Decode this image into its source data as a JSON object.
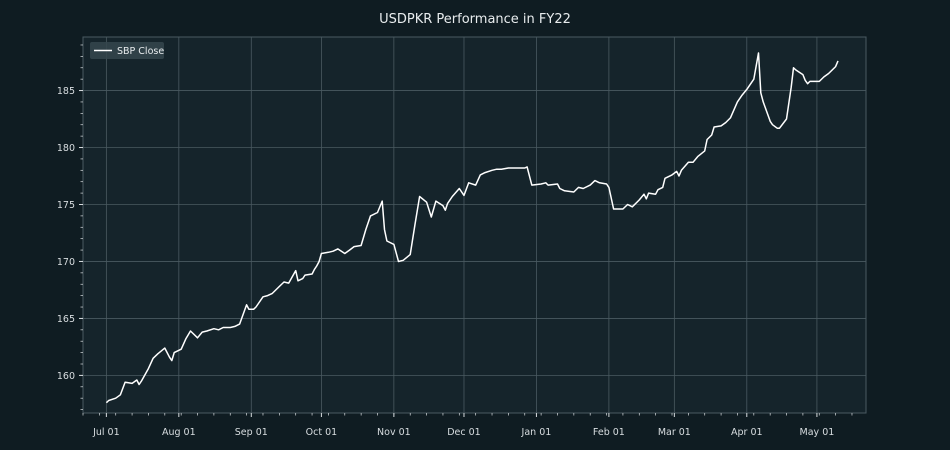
{
  "colors": {
    "figure_background": "#0f1c22",
    "axes_background": "#15242b",
    "grid": "#4a5a61",
    "line": "#ffffff",
    "text": "#d8dde0"
  },
  "chart_data": {
    "type": "line",
    "title": "USDPKR Performance in FY22",
    "xlabel": "",
    "ylabel": "",
    "grid": true,
    "legend_position": "top-left",
    "xlim": [
      "2021-06-21",
      "2022-05-22"
    ],
    "ylim": [
      156.7,
      189.7
    ],
    "x_ticks": [
      "2021-07-01",
      "2021-08-01",
      "2021-09-01",
      "2021-10-01",
      "2021-11-01",
      "2021-12-01",
      "2022-01-01",
      "2022-02-01",
      "2022-03-01",
      "2022-04-01",
      "2022-05-01"
    ],
    "x_tick_labels": [
      "Jul 01",
      "Aug 01",
      "Sep 01",
      "Oct 01",
      "Nov 01",
      "Dec 01",
      "Jan 01",
      "Feb 01",
      "Mar 01",
      "Apr 01",
      "May 01"
    ],
    "y_ticks": [
      160,
      165,
      170,
      175,
      180,
      185
    ],
    "y_tick_labels": [
      "160",
      "165",
      "170",
      "175",
      "180",
      "185"
    ],
    "series": [
      {
        "name": "SBP Close",
        "points": [
          [
            "2021-07-01",
            157.6
          ],
          [
            "2021-07-02",
            157.8
          ],
          [
            "2021-07-05",
            158.0
          ],
          [
            "2021-07-07",
            158.3
          ],
          [
            "2021-07-09",
            159.4
          ],
          [
            "2021-07-12",
            159.3
          ],
          [
            "2021-07-14",
            159.6
          ],
          [
            "2021-07-15",
            159.2
          ],
          [
            "2021-07-16",
            159.5
          ],
          [
            "2021-07-19",
            160.6
          ],
          [
            "2021-07-21",
            161.5
          ],
          [
            "2021-07-23",
            161.9
          ],
          [
            "2021-07-26",
            162.4
          ],
          [
            "2021-07-28",
            161.6
          ],
          [
            "2021-07-29",
            161.3
          ],
          [
            "2021-07-30",
            162.0
          ],
          [
            "2021-08-02",
            162.3
          ],
          [
            "2021-08-04",
            163.2
          ],
          [
            "2021-08-06",
            163.9
          ],
          [
            "2021-08-09",
            163.3
          ],
          [
            "2021-08-11",
            163.8
          ],
          [
            "2021-08-13",
            163.9
          ],
          [
            "2021-08-16",
            164.1
          ],
          [
            "2021-08-18",
            164.0
          ],
          [
            "2021-08-20",
            164.2
          ],
          [
            "2021-08-23",
            164.2
          ],
          [
            "2021-08-25",
            164.3
          ],
          [
            "2021-08-27",
            164.5
          ],
          [
            "2021-08-30",
            166.2
          ],
          [
            "2021-08-31",
            165.8
          ],
          [
            "2021-09-02",
            165.8
          ],
          [
            "2021-09-03",
            166.0
          ],
          [
            "2021-09-06",
            166.9
          ],
          [
            "2021-09-08",
            167.0
          ],
          [
            "2021-09-10",
            167.2
          ],
          [
            "2021-09-13",
            167.8
          ],
          [
            "2021-09-15",
            168.2
          ],
          [
            "2021-09-17",
            168.1
          ],
          [
            "2021-09-20",
            169.2
          ],
          [
            "2021-09-21",
            168.3
          ],
          [
            "2021-09-23",
            168.5
          ],
          [
            "2021-09-24",
            168.8
          ],
          [
            "2021-09-27",
            168.9
          ],
          [
            "2021-09-28",
            169.3
          ],
          [
            "2021-09-29",
            169.6
          ],
          [
            "2021-09-30",
            170.0
          ],
          [
            "2021-10-01",
            170.7
          ],
          [
            "2021-10-04",
            170.8
          ],
          [
            "2021-10-06",
            170.9
          ],
          [
            "2021-10-08",
            171.1
          ],
          [
            "2021-10-11",
            170.7
          ],
          [
            "2021-10-13",
            171.0
          ],
          [
            "2021-10-15",
            171.3
          ],
          [
            "2021-10-18",
            171.4
          ],
          [
            "2021-10-20",
            172.8
          ],
          [
            "2021-10-22",
            174.0
          ],
          [
            "2021-10-25",
            174.3
          ],
          [
            "2021-10-27",
            175.3
          ],
          [
            "2021-10-28",
            172.8
          ],
          [
            "2021-10-29",
            171.8
          ],
          [
            "2021-11-01",
            171.5
          ],
          [
            "2021-11-03",
            170.0
          ],
          [
            "2021-11-05",
            170.1
          ],
          [
            "2021-11-08",
            170.6
          ],
          [
            "2021-11-10",
            173.2
          ],
          [
            "2021-11-12",
            175.7
          ],
          [
            "2021-11-15",
            175.2
          ],
          [
            "2021-11-17",
            173.9
          ],
          [
            "2021-11-19",
            175.3
          ],
          [
            "2021-11-22",
            174.9
          ],
          [
            "2021-11-23",
            174.5
          ],
          [
            "2021-11-24",
            175.1
          ],
          [
            "2021-11-26",
            175.7
          ],
          [
            "2021-11-29",
            176.4
          ],
          [
            "2021-12-01",
            175.8
          ],
          [
            "2021-12-03",
            176.9
          ],
          [
            "2021-12-06",
            176.7
          ],
          [
            "2021-12-08",
            177.6
          ],
          [
            "2021-12-10",
            177.8
          ],
          [
            "2021-12-13",
            178.0
          ],
          [
            "2021-12-15",
            178.1
          ],
          [
            "2021-12-17",
            178.1
          ],
          [
            "2021-12-20",
            178.2
          ],
          [
            "2021-12-22",
            178.2
          ],
          [
            "2021-12-24",
            178.2
          ],
          [
            "2021-12-27",
            178.2
          ],
          [
            "2021-12-28",
            178.3
          ],
          [
            "2021-12-30",
            176.7
          ],
          [
            "2022-01-03",
            176.8
          ],
          [
            "2022-01-05",
            176.9
          ],
          [
            "2022-01-06",
            176.7
          ],
          [
            "2022-01-10",
            176.8
          ],
          [
            "2022-01-11",
            176.4
          ],
          [
            "2022-01-13",
            176.2
          ],
          [
            "2022-01-17",
            176.1
          ],
          [
            "2022-01-19",
            176.5
          ],
          [
            "2022-01-21",
            176.4
          ],
          [
            "2022-01-24",
            176.7
          ],
          [
            "2022-01-26",
            177.1
          ],
          [
            "2022-01-28",
            176.9
          ],
          [
            "2022-01-31",
            176.8
          ],
          [
            "2022-02-01",
            176.5
          ],
          [
            "2022-02-03",
            174.6
          ],
          [
            "2022-02-05",
            174.6
          ],
          [
            "2022-02-07",
            174.6
          ],
          [
            "2022-02-09",
            175.0
          ],
          [
            "2022-02-11",
            174.8
          ],
          [
            "2022-02-14",
            175.4
          ],
          [
            "2022-02-16",
            175.9
          ],
          [
            "2022-02-17",
            175.5
          ],
          [
            "2022-02-18",
            176.0
          ],
          [
            "2022-02-21",
            175.9
          ],
          [
            "2022-02-22",
            176.3
          ],
          [
            "2022-02-24",
            176.5
          ],
          [
            "2022-02-25",
            177.3
          ],
          [
            "2022-02-28",
            177.6
          ],
          [
            "2022-03-02",
            177.9
          ],
          [
            "2022-03-03",
            177.5
          ],
          [
            "2022-03-04",
            178.0
          ],
          [
            "2022-03-07",
            178.7
          ],
          [
            "2022-03-09",
            178.7
          ],
          [
            "2022-03-11",
            179.2
          ],
          [
            "2022-03-14",
            179.7
          ],
          [
            "2022-03-15",
            180.7
          ],
          [
            "2022-03-17",
            181.1
          ],
          [
            "2022-03-18",
            181.8
          ],
          [
            "2022-03-21",
            181.9
          ],
          [
            "2022-03-23",
            182.2
          ],
          [
            "2022-03-25",
            182.6
          ],
          [
            "2022-03-28",
            184.0
          ],
          [
            "2022-03-30",
            184.6
          ],
          [
            "2022-04-01",
            185.1
          ],
          [
            "2022-04-04",
            186.0
          ],
          [
            "2022-04-06",
            188.3
          ],
          [
            "2022-04-07",
            184.8
          ],
          [
            "2022-04-08",
            184.0
          ],
          [
            "2022-04-11",
            182.3
          ],
          [
            "2022-04-12",
            182.0
          ],
          [
            "2022-04-14",
            181.7
          ],
          [
            "2022-04-15",
            181.7
          ],
          [
            "2022-04-18",
            182.5
          ],
          [
            "2022-04-20",
            185.3
          ],
          [
            "2022-04-21",
            187.0
          ],
          [
            "2022-04-22",
            186.8
          ],
          [
            "2022-04-25",
            186.4
          ],
          [
            "2022-04-26",
            185.9
          ],
          [
            "2022-04-27",
            185.6
          ],
          [
            "2022-04-28",
            185.8
          ],
          [
            "2022-05-02",
            185.8
          ],
          [
            "2022-05-04",
            186.2
          ],
          [
            "2022-05-06",
            186.5
          ],
          [
            "2022-05-09",
            187.1
          ],
          [
            "2022-05-10",
            187.6
          ]
        ]
      }
    ]
  }
}
